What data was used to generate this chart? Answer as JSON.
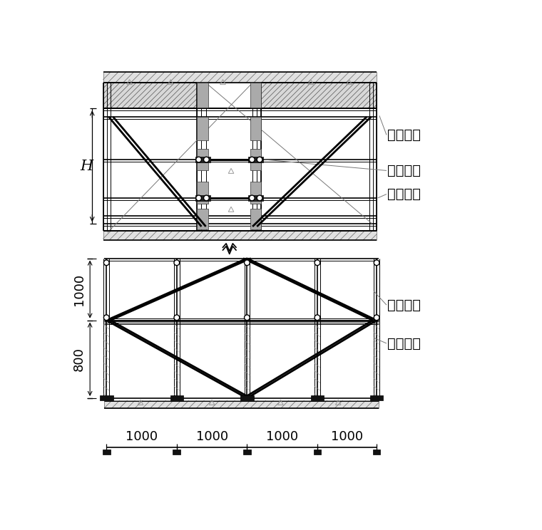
{
  "bg_color": "#ffffff",
  "line_color": "#000000",
  "gray_color": "#888888",
  "labels": {
    "H": "H",
    "label1": "框梁斜撑",
    "label2": "对拉丝杆",
    "label3": "加固钢管",
    "label4": "加固斜撑",
    "label5": "支撑垫板"
  },
  "dims_bottom": [
    "1000",
    "1000",
    "1000",
    "1000"
  ],
  "dim_1000": "1000",
  "dim_800": "800",
  "font_size_label": 14,
  "font_size_dim": 13
}
